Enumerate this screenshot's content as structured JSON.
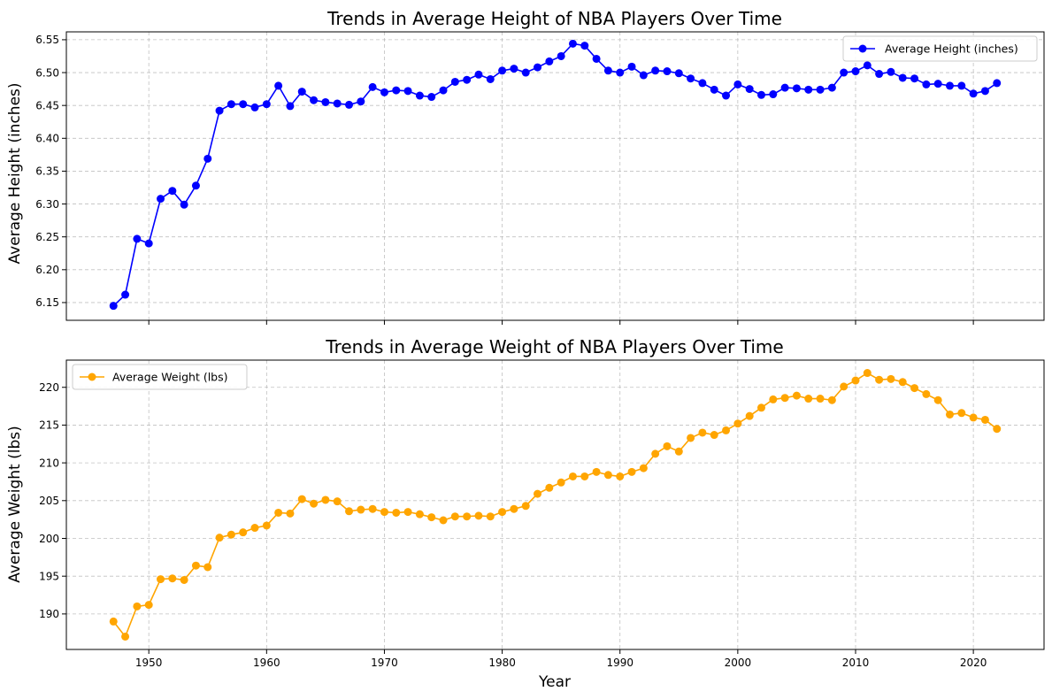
{
  "chart_data": [
    {
      "type": "line",
      "title": "Trends in Average Height of NBA Players Over Time",
      "xlabel": "",
      "ylabel": "Average Height (inches)",
      "xlim": [
        1943,
        2026
      ],
      "ylim": [
        6.123,
        6.562
      ],
      "xticks": [
        1950,
        1960,
        1970,
        1980,
        1990,
        2000,
        2010,
        2020
      ],
      "show_xtick_labels": false,
      "yticks": [
        6.15,
        6.2,
        6.25,
        6.3,
        6.35,
        6.4,
        6.45,
        6.5,
        6.55
      ],
      "ytick_labels": [
        "6.15",
        "6.20",
        "6.25",
        "6.30",
        "6.35",
        "6.40",
        "6.45",
        "6.50",
        "6.55"
      ],
      "grid": true,
      "legend_position": "upper-right",
      "series": [
        {
          "name": "Average Height (inches)",
          "color": "#0000ff",
          "marker": "circle",
          "x": [
            1947,
            1948,
            1949,
            1950,
            1951,
            1952,
            1953,
            1954,
            1955,
            1956,
            1957,
            1958,
            1959,
            1960,
            1961,
            1962,
            1963,
            1964,
            1965,
            1966,
            1967,
            1968,
            1969,
            1970,
            1971,
            1972,
            1973,
            1974,
            1975,
            1976,
            1977,
            1978,
            1979,
            1980,
            1981,
            1982,
            1983,
            1984,
            1985,
            1986,
            1987,
            1988,
            1989,
            1990,
            1991,
            1992,
            1993,
            1994,
            1995,
            1996,
            1997,
            1998,
            1999,
            2000,
            2001,
            2002,
            2003,
            2004,
            2005,
            2006,
            2007,
            2008,
            2009,
            2010,
            2011,
            2012,
            2013,
            2014,
            2015,
            2016,
            2017,
            2018,
            2019,
            2020,
            2021,
            2022
          ],
          "values": [
            6.145,
            6.162,
            6.247,
            6.24,
            6.308,
            6.32,
            6.299,
            6.328,
            6.369,
            6.442,
            6.452,
            6.452,
            6.447,
            6.452,
            6.48,
            6.449,
            6.471,
            6.458,
            6.455,
            6.453,
            6.451,
            6.456,
            6.478,
            6.47,
            6.473,
            6.472,
            6.465,
            6.463,
            6.473,
            6.486,
            6.489,
            6.497,
            6.49,
            6.503,
            6.506,
            6.5,
            6.508,
            6.517,
            6.525,
            6.544,
            6.541,
            6.521,
            6.503,
            6.5,
            6.509,
            6.496,
            6.503,
            6.502,
            6.499,
            6.491,
            6.484,
            6.474,
            6.465,
            6.482,
            6.475,
            6.466,
            6.467,
            6.477,
            6.476,
            6.474,
            6.474,
            6.477,
            6.5,
            6.502,
            6.511,
            6.498,
            6.501,
            6.492,
            6.491,
            6.482,
            6.483,
            6.48,
            6.48,
            6.468,
            6.472,
            6.484
          ]
        }
      ]
    },
    {
      "type": "line",
      "title": "Trends in Average Weight of NBA Players Over Time",
      "xlabel": "Year",
      "ylabel": "Average Weight (lbs)",
      "xlim": [
        1943,
        2026
      ],
      "ylim": [
        185.3,
        223.6
      ],
      "xticks": [
        1950,
        1960,
        1970,
        1980,
        1990,
        2000,
        2010,
        2020
      ],
      "show_xtick_labels": true,
      "yticks": [
        190,
        195,
        200,
        205,
        210,
        215,
        220
      ],
      "ytick_labels": [
        "190",
        "195",
        "200",
        "205",
        "210",
        "215",
        "220"
      ],
      "grid": true,
      "legend_position": "upper-left",
      "series": [
        {
          "name": "Average Weight (lbs)",
          "color": "#ffa500",
          "marker": "circle",
          "x": [
            1947,
            1948,
            1949,
            1950,
            1951,
            1952,
            1953,
            1954,
            1955,
            1956,
            1957,
            1958,
            1959,
            1960,
            1961,
            1962,
            1963,
            1964,
            1965,
            1966,
            1967,
            1968,
            1969,
            1970,
            1971,
            1972,
            1973,
            1974,
            1975,
            1976,
            1977,
            1978,
            1979,
            1980,
            1981,
            1982,
            1983,
            1984,
            1985,
            1986,
            1987,
            1988,
            1989,
            1990,
            1991,
            1992,
            1993,
            1994,
            1995,
            1996,
            1997,
            1998,
            1999,
            2000,
            2001,
            2002,
            2003,
            2004,
            2005,
            2006,
            2007,
            2008,
            2009,
            2010,
            2011,
            2012,
            2013,
            2014,
            2015,
            2016,
            2017,
            2018,
            2019,
            2020,
            2021,
            2022
          ],
          "values": [
            189.0,
            187.0,
            191.0,
            191.2,
            194.6,
            194.7,
            194.5,
            196.4,
            196.2,
            200.1,
            200.5,
            200.8,
            201.4,
            201.7,
            203.4,
            203.3,
            205.2,
            204.6,
            205.1,
            204.9,
            203.6,
            203.8,
            203.9,
            203.5,
            203.4,
            203.5,
            203.2,
            202.8,
            202.4,
            202.9,
            202.9,
            203.0,
            202.9,
            203.5,
            203.9,
            204.3,
            205.9,
            206.7,
            207.4,
            208.2,
            208.2,
            208.8,
            208.4,
            208.2,
            208.8,
            209.3,
            211.2,
            212.2,
            211.5,
            213.3,
            214.0,
            213.7,
            214.3,
            215.2,
            216.2,
            217.3,
            218.4,
            218.6,
            218.9,
            218.5,
            218.5,
            218.3,
            220.1,
            220.9,
            221.9,
            221.0,
            221.1,
            220.7,
            219.9,
            219.1,
            218.3,
            216.4,
            216.6,
            216.0,
            215.7,
            214.5
          ]
        }
      ]
    }
  ]
}
